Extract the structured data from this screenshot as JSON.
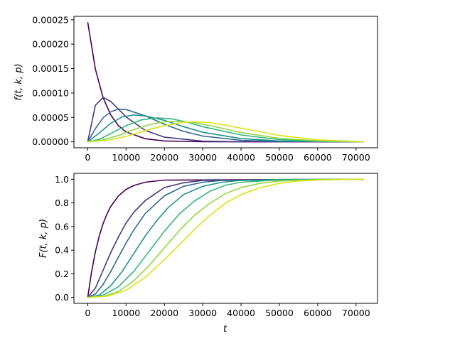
{
  "chart_data": [
    {
      "type": "line",
      "title": "",
      "xlabel": "",
      "ylabel": "f(t, k, p)",
      "xlim": [
        -3600,
        75600
      ],
      "ylim": [
        -1.22e-05,
        0.000257
      ],
      "xticks": [
        0,
        10000,
        20000,
        30000,
        40000,
        50000,
        60000,
        70000
      ],
      "xtick_labels": [
        "0",
        "10000",
        "20000",
        "30000",
        "40000",
        "50000",
        "60000",
        "70000"
      ],
      "yticks": [
        0,
        5e-05,
        0.0001,
        0.00015,
        0.0002,
        0.00025
      ],
      "ytick_labels": [
        "0.00000",
        "0.00005",
        "0.00010",
        "0.00015",
        "0.00020",
        "0.00025"
      ],
      "grid": false,
      "legend": "none",
      "series": [
        {
          "color": "#440154",
          "x": [
            0,
            2000,
            4000,
            6000,
            8000,
            10000,
            15000,
            20000,
            30000,
            40000,
            72000
          ],
          "y": [
            0.000245,
            0.0001488,
            9.04e-05,
            5.49e-05,
            3.33e-05,
            2.02e-05,
            6.3e-06,
            1.8e-06,
            2e-07,
            0.0,
            0.0
          ]
        },
        {
          "color": "#443983",
          "x": [
            0,
            2000,
            4000,
            6000,
            8000,
            10000,
            15000,
            20000,
            30000,
            40000,
            72000
          ],
          "y": [
            0.0,
            7.48e-05,
            9.09e-05,
            8.27e-05,
            6.7e-05,
            5.09e-05,
            2.34e-05,
            9.5e-06,
            1.3e-06,
            2e-07,
            0.0
          ]
        },
        {
          "color": "#31688e",
          "x": [
            0,
            2000,
            4000,
            6000,
            8000,
            10000,
            15000,
            20000,
            25000,
            30000,
            40000,
            50000,
            72000
          ],
          "y": [
            0.0,
            2.7e-05,
            4.92e-05,
            6.15e-05,
            6.69e-05,
            6.61e-05,
            5.33e-05,
            3.6e-05,
            2.14e-05,
            1.18e-05,
            3.1e-06,
            7e-07,
            0.0
          ]
        },
        {
          "color": "#21918c",
          "x": [
            0,
            3000,
            6000,
            9000,
            12000,
            15000,
            20000,
            25000,
            30000,
            40000,
            50000,
            72000
          ],
          "y": [
            0.0,
            1.8e-05,
            3.8e-05,
            5.1e-05,
            5.5e-05,
            5.3e-05,
            4.4e-05,
            3.1e-05,
            1.95e-05,
            6.5e-06,
            1.8e-06,
            0.0
          ]
        },
        {
          "color": "#35b779",
          "x": [
            0,
            3000,
            6000,
            10000,
            14000,
            18000,
            22000,
            26000,
            30000,
            40000,
            50000,
            60000,
            72000
          ],
          "y": [
            0.0,
            5e-06,
            1.7e-05,
            3.3e-05,
            4.5e-05,
            4.9e-05,
            4.7e-05,
            4e-05,
            3.1e-05,
            1.4e-05,
            4.5e-06,
            1.2e-06,
            0.0
          ]
        },
        {
          "color": "#90d743",
          "x": [
            0,
            4000,
            8000,
            12000,
            16000,
            20000,
            24000,
            28000,
            32000,
            40000,
            50000,
            60000,
            72000
          ],
          "y": [
            0.0,
            4e-06,
            1.3e-05,
            2.5e-05,
            3.5e-05,
            4.1e-05,
            4.2e-05,
            3.9e-05,
            3.3e-05,
            1.9e-05,
            7e-06,
            2e-06,
            0.0
          ]
        },
        {
          "color": "#dde318",
          "x": [
            0,
            5000,
            10000,
            15000,
            20000,
            25000,
            28000,
            32000,
            36000,
            42000,
            50000,
            60000,
            72000
          ],
          "y": [
            0.0,
            3e-06,
            1.1e-05,
            2.3e-05,
            3.3e-05,
            4e-05,
            4.1e-05,
            3.9e-05,
            3.4e-05,
            2.5e-05,
            1.3e-05,
            4e-06,
            3e-07
          ]
        }
      ]
    },
    {
      "type": "line",
      "title": "",
      "xlabel": "t",
      "ylabel": "F(t, k, p)",
      "xlim": [
        -3600,
        75600
      ],
      "ylim": [
        -0.05,
        1.05
      ],
      "xticks": [
        0,
        10000,
        20000,
        30000,
        40000,
        50000,
        60000,
        70000
      ],
      "xtick_labels": [
        "0",
        "10000",
        "20000",
        "30000",
        "40000",
        "50000",
        "60000",
        "70000"
      ],
      "yticks": [
        0,
        0.2,
        0.4,
        0.6,
        0.8,
        1.0
      ],
      "ytick_labels": [
        "0.0",
        "0.2",
        "0.4",
        "0.6",
        "0.8",
        "1.0"
      ],
      "grid": false,
      "legend": "none",
      "series": [
        {
          "color": "#440154",
          "x": [
            0,
            1000,
            2000,
            3000,
            4000,
            5000,
            6000,
            8000,
            10000,
            12000,
            15000,
            20000,
            72000
          ],
          "y": [
            0.0,
            0.217,
            0.387,
            0.52,
            0.624,
            0.706,
            0.77,
            0.859,
            0.914,
            0.947,
            0.975,
            0.993,
            1.0
          ]
        },
        {
          "color": "#443983",
          "x": [
            0,
            2000,
            4000,
            6000,
            8000,
            10000,
            12000,
            15000,
            20000,
            25000,
            30000,
            72000
          ],
          "y": [
            0.0,
            0.08,
            0.23,
            0.38,
            0.51,
            0.63,
            0.72,
            0.82,
            0.93,
            0.97,
            0.99,
            1.0
          ]
        },
        {
          "color": "#31688e",
          "x": [
            0,
            2000,
            4000,
            6000,
            8000,
            10000,
            12000,
            15000,
            20000,
            25000,
            30000,
            35000,
            72000
          ],
          "y": [
            0.0,
            0.03,
            0.11,
            0.22,
            0.34,
            0.46,
            0.57,
            0.71,
            0.86,
            0.94,
            0.975,
            0.99,
            1.0
          ]
        },
        {
          "color": "#21918c",
          "x": [
            0,
            3000,
            6000,
            9000,
            12000,
            15000,
            18000,
            21000,
            25000,
            30000,
            35000,
            40000,
            50000,
            72000
          ],
          "y": [
            0.0,
            0.02,
            0.1,
            0.22,
            0.37,
            0.52,
            0.65,
            0.76,
            0.87,
            0.94,
            0.975,
            0.99,
            0.998,
            1.0
          ]
        },
        {
          "color": "#35b779",
          "x": [
            0,
            4000,
            8000,
            12000,
            16000,
            20000,
            24000,
            28000,
            32000,
            36000,
            40000,
            50000,
            60000,
            72000
          ],
          "y": [
            0.0,
            0.02,
            0.09,
            0.22,
            0.39,
            0.56,
            0.71,
            0.82,
            0.9,
            0.95,
            0.975,
            0.995,
            0.999,
            1.0
          ]
        },
        {
          "color": "#90d743",
          "x": [
            0,
            4000,
            8000,
            12000,
            16000,
            20000,
            24000,
            28000,
            32000,
            36000,
            40000,
            45000,
            50000,
            60000,
            72000
          ],
          "y": [
            0.0,
            0.008,
            0.05,
            0.14,
            0.27,
            0.42,
            0.57,
            0.7,
            0.8,
            0.88,
            0.93,
            0.965,
            0.985,
            0.997,
            1.0
          ]
        },
        {
          "color": "#dde318",
          "x": [
            0,
            5000,
            10000,
            15000,
            20000,
            25000,
            28000,
            32000,
            36000,
            40000,
            45000,
            50000,
            55000,
            60000,
            72000
          ],
          "y": [
            0.0,
            0.01,
            0.06,
            0.17,
            0.32,
            0.48,
            0.58,
            0.7,
            0.8,
            0.87,
            0.93,
            0.965,
            0.985,
            0.993,
            1.0
          ]
        }
      ]
    }
  ]
}
